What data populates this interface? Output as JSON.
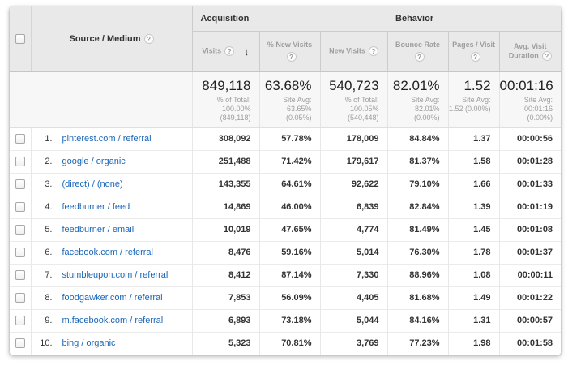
{
  "colors": {
    "link_blue": "#1a66b8",
    "header_bg": "#e9e9e9"
  },
  "icons": {
    "help": "?",
    "sort_desc": "↓"
  },
  "header": {
    "source_medium": "Source / Medium",
    "groups": {
      "acquisition": "Acquisition",
      "behavior": "Behavior"
    },
    "columns": {
      "visits": "Visits",
      "new_visits_pct": "% New Visits",
      "new_visits": "New Visits",
      "bounce_rate": "Bounce Rate",
      "pages_per_visit": "Pages / Visit",
      "avg_visit_duration_line1": "Avg. Visit",
      "avg_visit_duration_line2": "Duration"
    }
  },
  "totals": {
    "visits": {
      "value": "849,118",
      "sub1": "% of Total:",
      "sub2": "100.00%",
      "sub3": "(849,118)"
    },
    "new_visits_pct": {
      "value": "63.68%",
      "sub1": "Site Avg:",
      "sub2": "63.65%",
      "sub3": "(0.05%)"
    },
    "new_visits": {
      "value": "540,723",
      "sub1": "% of Total:",
      "sub2": "100.05%",
      "sub3": "(540,448)"
    },
    "bounce_rate": {
      "value": "82.01%",
      "sub1": "Site Avg:",
      "sub2": "82.01%",
      "sub3": "(0.00%)"
    },
    "pages_per_visit": {
      "value": "1.52",
      "sub1": "Site Avg:",
      "sub2": "1.52 (0.00%)",
      "sub3": ""
    },
    "avg_duration": {
      "value": "00:01:16",
      "sub1": "Site Avg:",
      "sub2": "00:01:16",
      "sub3": "(0.00%)"
    }
  },
  "rows": [
    {
      "num": "1.",
      "source": "pinterest.com / referral",
      "visits": "308,092",
      "new_visits_pct": "57.78%",
      "new_visits": "178,009",
      "bounce_rate": "84.84%",
      "pages_per_visit": "1.37",
      "avg_duration": "00:00:56"
    },
    {
      "num": "2.",
      "source": "google / organic",
      "visits": "251,488",
      "new_visits_pct": "71.42%",
      "new_visits": "179,617",
      "bounce_rate": "81.37%",
      "pages_per_visit": "1.58",
      "avg_duration": "00:01:28"
    },
    {
      "num": "3.",
      "source": "(direct) / (none)",
      "visits": "143,355",
      "new_visits_pct": "64.61%",
      "new_visits": "92,622",
      "bounce_rate": "79.10%",
      "pages_per_visit": "1.66",
      "avg_duration": "00:01:33"
    },
    {
      "num": "4.",
      "source": "feedburner / feed",
      "visits": "14,869",
      "new_visits_pct": "46.00%",
      "new_visits": "6,839",
      "bounce_rate": "82.84%",
      "pages_per_visit": "1.39",
      "avg_duration": "00:01:19"
    },
    {
      "num": "5.",
      "source": "feedburner / email",
      "visits": "10,019",
      "new_visits_pct": "47.65%",
      "new_visits": "4,774",
      "bounce_rate": "81.49%",
      "pages_per_visit": "1.45",
      "avg_duration": "00:01:08"
    },
    {
      "num": "6.",
      "source": "facebook.com / referral",
      "visits": "8,476",
      "new_visits_pct": "59.16%",
      "new_visits": "5,014",
      "bounce_rate": "76.30%",
      "pages_per_visit": "1.78",
      "avg_duration": "00:01:37"
    },
    {
      "num": "7.",
      "source": "stumbleupon.com / referral",
      "visits": "8,412",
      "new_visits_pct": "87.14%",
      "new_visits": "7,330",
      "bounce_rate": "88.96%",
      "pages_per_visit": "1.08",
      "avg_duration": "00:00:11"
    },
    {
      "num": "8.",
      "source": "foodgawker.com / referral",
      "visits": "7,853",
      "new_visits_pct": "56.09%",
      "new_visits": "4,405",
      "bounce_rate": "81.68%",
      "pages_per_visit": "1.49",
      "avg_duration": "00:01:22"
    },
    {
      "num": "9.",
      "source": "m.facebook.com / referral",
      "visits": "6,893",
      "new_visits_pct": "73.18%",
      "new_visits": "5,044",
      "bounce_rate": "84.16%",
      "pages_per_visit": "1.31",
      "avg_duration": "00:00:57"
    },
    {
      "num": "10.",
      "source": "bing / organic",
      "visits": "5,323",
      "new_visits_pct": "70.81%",
      "new_visits": "3,769",
      "bounce_rate": "77.23%",
      "pages_per_visit": "1.98",
      "avg_duration": "00:01:58"
    }
  ]
}
